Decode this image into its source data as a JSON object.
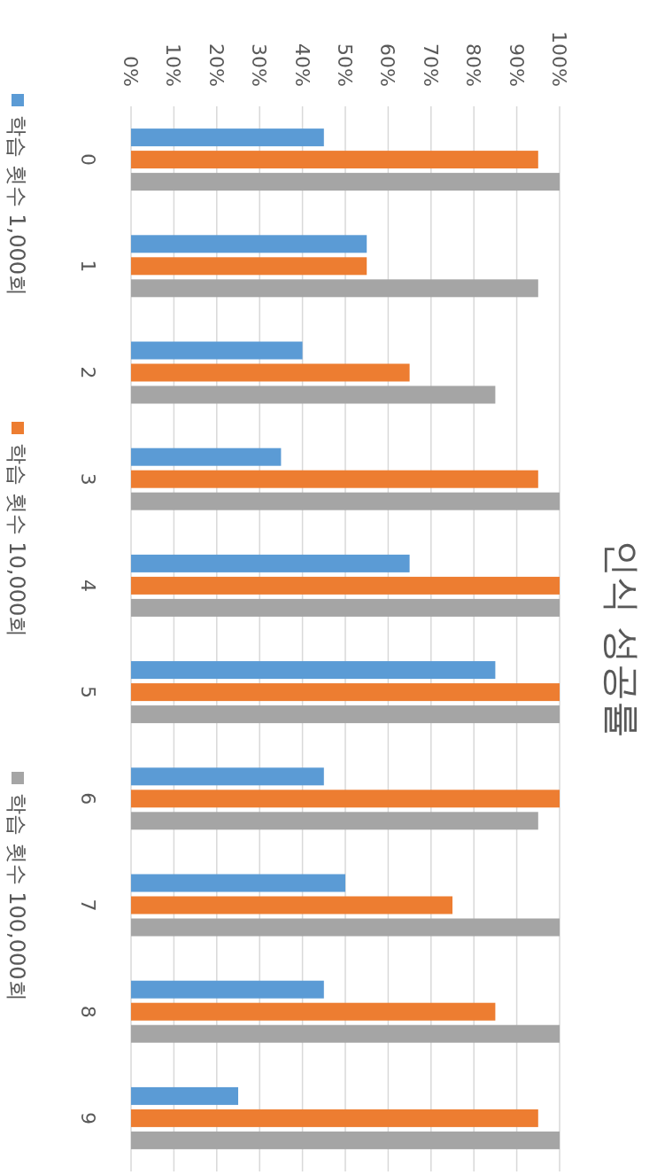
{
  "chart_data": {
    "type": "bar",
    "title": "인식 성공률",
    "categories": [
      "0",
      "1",
      "2",
      "3",
      "4",
      "5",
      "6",
      "7",
      "8",
      "9"
    ],
    "series": [
      {
        "name": "학습 횟수 1,000회",
        "color": "#5b9bd5",
        "values": [
          45,
          55,
          40,
          35,
          65,
          85,
          45,
          50,
          45,
          25
        ]
      },
      {
        "name": "학습 횟수 10,000회",
        "color": "#ed7d31",
        "values": [
          95,
          55,
          65,
          95,
          100,
          100,
          100,
          75,
          85,
          95
        ]
      },
      {
        "name": "학습 횟수 100,000회",
        "color": "#a5a5a5",
        "values": [
          100,
          95,
          85,
          100,
          100,
          100,
          95,
          100,
          100,
          100
        ]
      }
    ],
    "orientation": "horizontal",
    "xlim": [
      0,
      100
    ],
    "xticks": [
      {
        "value": 0,
        "label": "0%"
      },
      {
        "value": 10,
        "label": "10%"
      },
      {
        "value": 20,
        "label": "20%"
      },
      {
        "value": 30,
        "label": "30%"
      },
      {
        "value": 40,
        "label": "40%"
      },
      {
        "value": 50,
        "label": "50%"
      },
      {
        "value": 60,
        "label": "60%"
      },
      {
        "value": 70,
        "label": "70%"
      },
      {
        "value": 80,
        "label": "80%"
      },
      {
        "value": 90,
        "label": "90%"
      },
      {
        "value": 100,
        "label": "100%"
      }
    ],
    "grid": "x",
    "legend": "left"
  }
}
